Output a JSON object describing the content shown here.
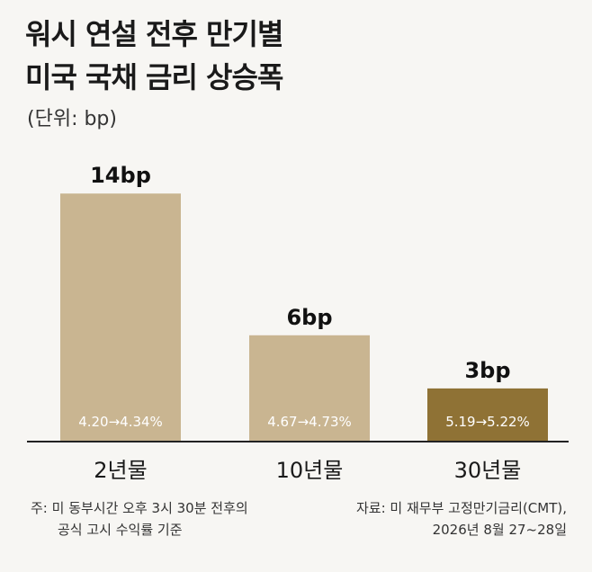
{
  "title_line1": "워시 연설 전후 만기별",
  "title_line2": "미국 국채 금리 상승폭",
  "unit": "(단위: bp)",
  "chart_data": {
    "type": "bar",
    "categories": [
      "2년물",
      "10년물",
      "30년물"
    ],
    "values": [
      14,
      6,
      3
    ],
    "value_labels": [
      "14bp",
      "6bp",
      "3bp"
    ],
    "range_labels": [
      "4.20→4.34%",
      "4.67→4.73%",
      "5.19→5.22%"
    ],
    "colors": [
      "#c9b591",
      "#c9b591",
      "#8f7235"
    ],
    "ylim": [
      0,
      15
    ]
  },
  "footnote": {
    "line1": "주: 미 동부시간 오후 3시 30분 전후의",
    "line2": "공식 고시 수익률 기준",
    "source1": "자료: 미 재무부 고정만기금리(CMT),",
    "source2": "2026년 8월 27~28일"
  }
}
